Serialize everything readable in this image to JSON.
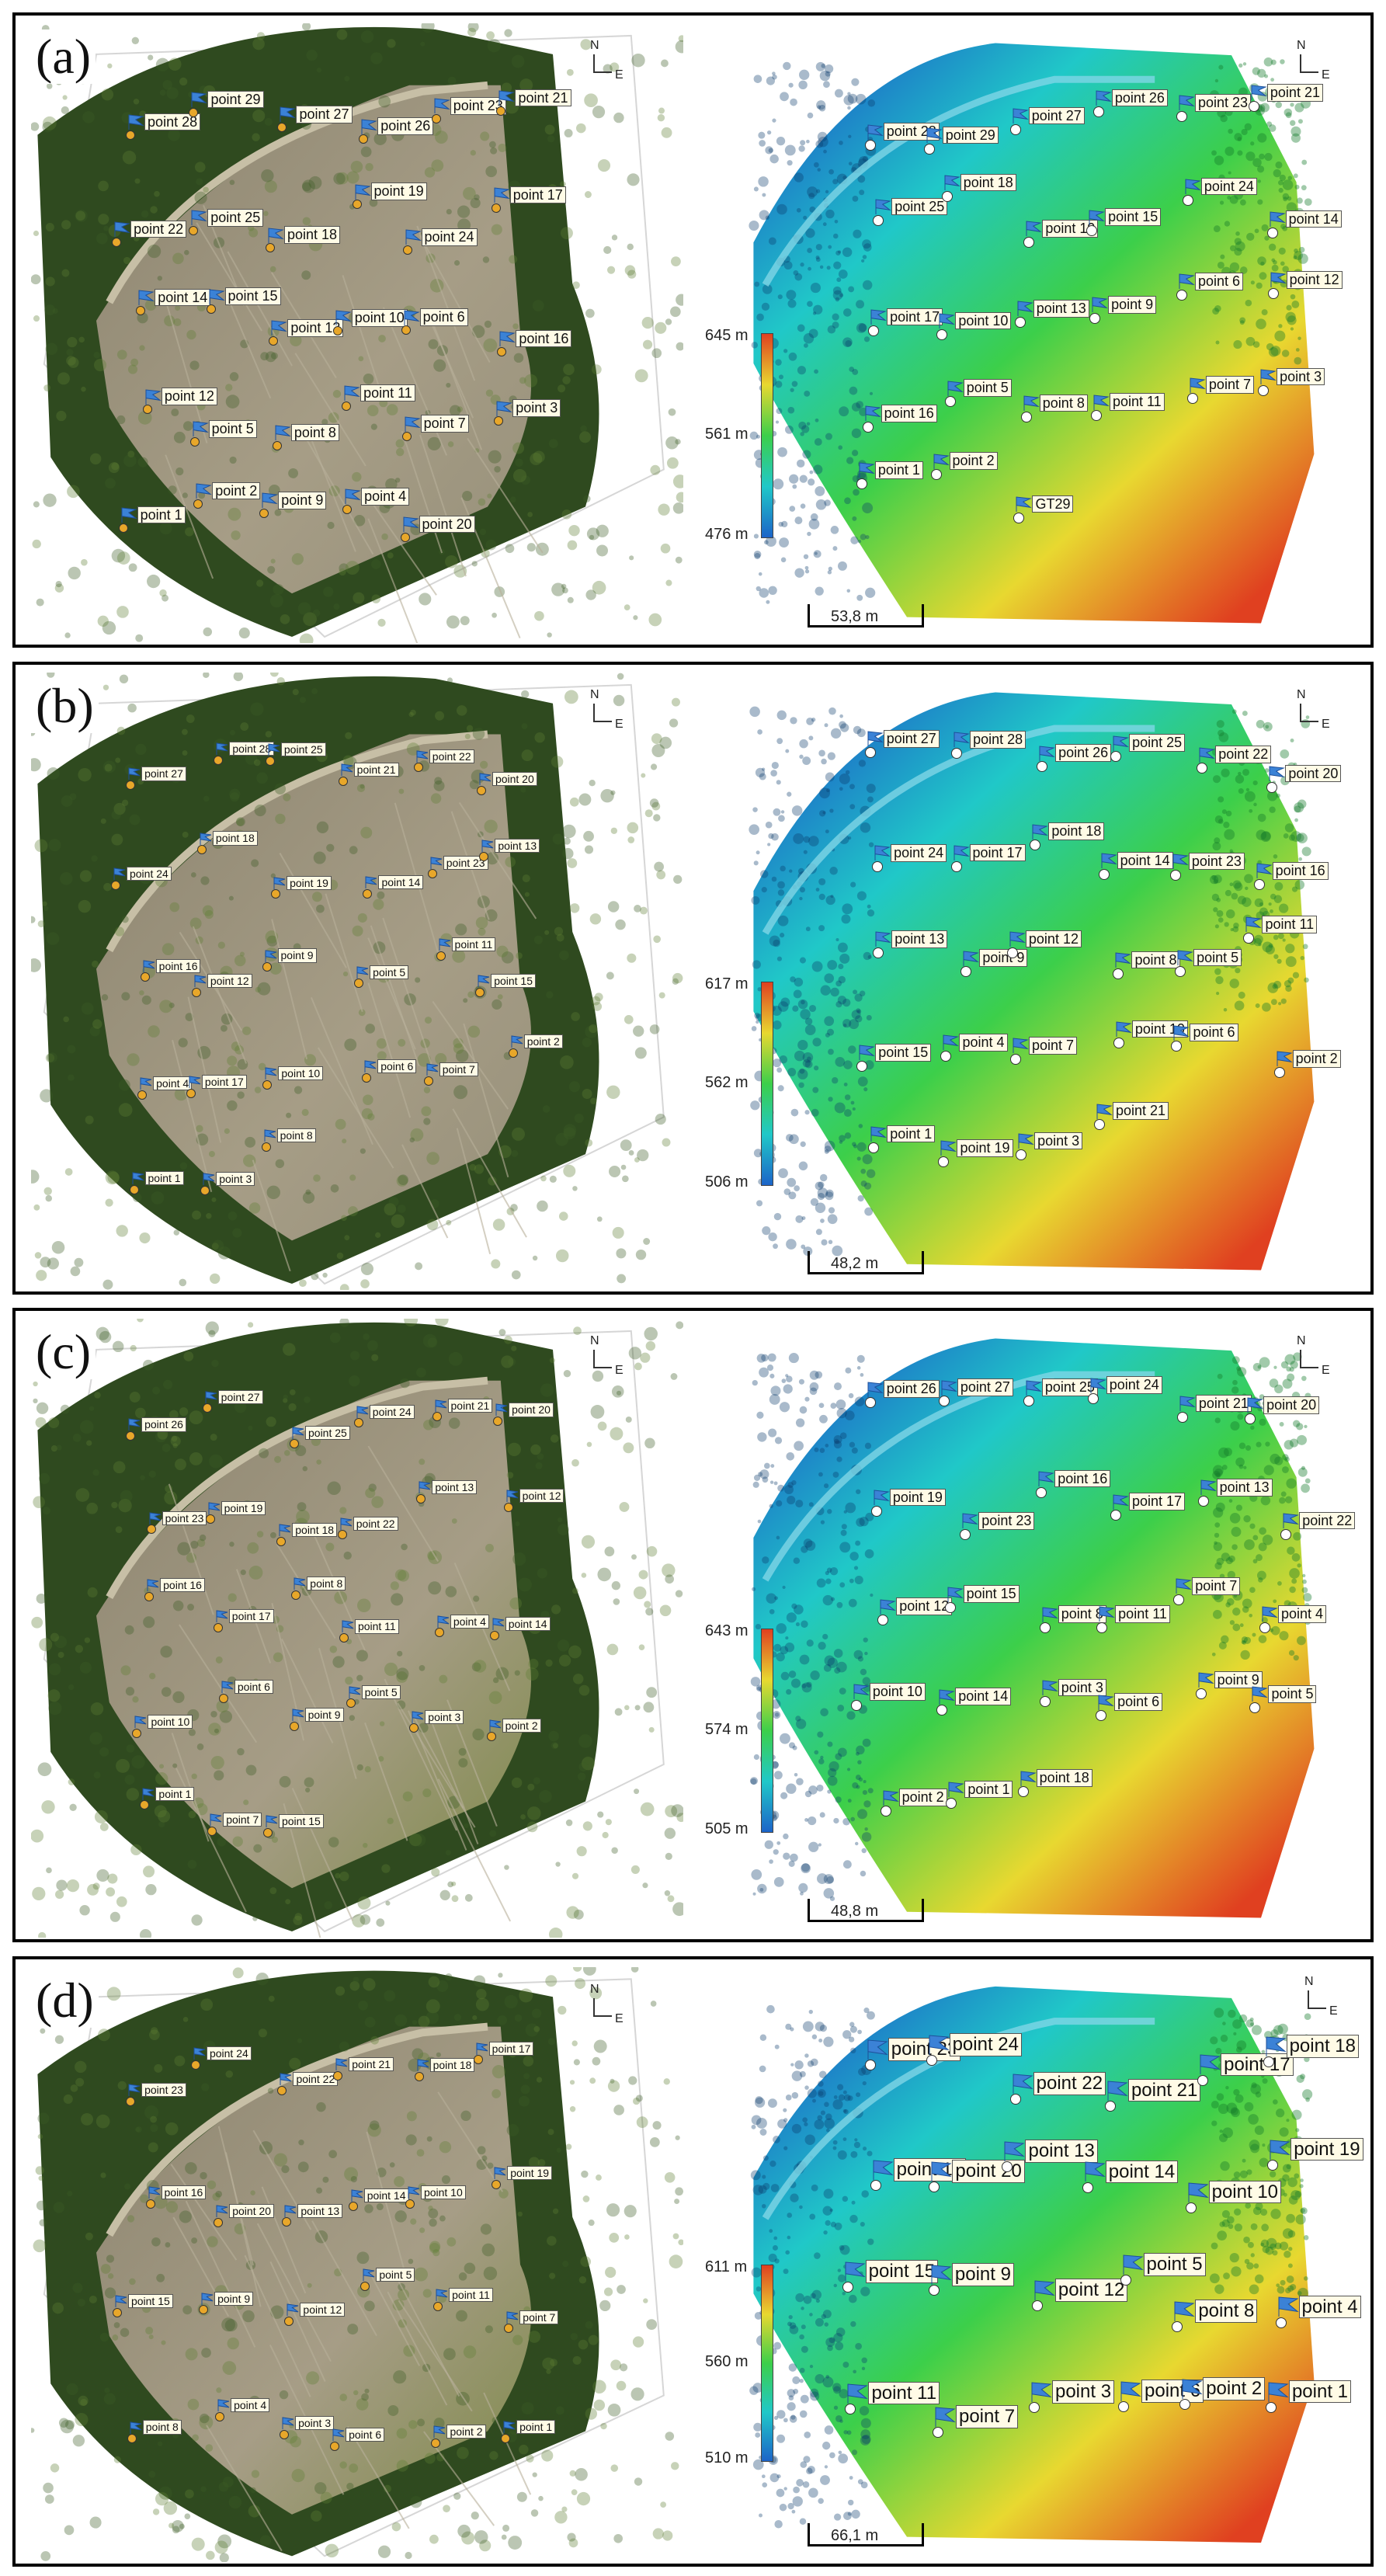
{
  "panels": [
    {
      "letter": "(a)",
      "colorbar": {
        "max": "645 m",
        "mid": "561 m",
        "min": "476 m"
      },
      "scale": "53,8 m",
      "ortho_points": [
        "point 28",
        "point 29",
        "point 27",
        "point 26",
        "point 23",
        "point 21",
        "point 22",
        "point 25",
        "point 18",
        "point 19",
        "point 24",
        "point 17",
        "point 14",
        "point 15",
        "point 13",
        "point 10",
        "point 6",
        "point 16",
        "point 12",
        "point 5",
        "point 8",
        "point 11",
        "point 7",
        "point 3",
        "point 1",
        "point 2",
        "point 9",
        "point 4",
        "point 20"
      ],
      "dem_points": [
        "point 28",
        "point 29",
        "point 27",
        "point 26",
        "point 23",
        "point 21",
        "point 25",
        "point 18",
        "point 19",
        "point 15",
        "point 24",
        "point 14",
        "point 17",
        "point 10",
        "point 13",
        "point 9",
        "point 6",
        "point 12",
        "point 16",
        "point 5",
        "point 8",
        "point 11",
        "point 7",
        "point 3",
        "point 1",
        "point 2",
        "GT29"
      ]
    },
    {
      "letter": "(b)",
      "colorbar": {
        "max": "617 m",
        "mid": "562 m",
        "min": "506 m"
      },
      "scale": "48,2 m",
      "ortho_points": [
        "point 27",
        "point 28",
        "point 25",
        "point 21",
        "point 22",
        "point 20",
        "point 24",
        "point 18",
        "point 19",
        "point 14",
        "point 23",
        "point 13",
        "point 16",
        "point 12",
        "point 9",
        "point 5",
        "point 11",
        "point 15",
        "point 4",
        "point 17",
        "point 10",
        "point 6",
        "point 7",
        "point 2",
        "point 1",
        "point 3",
        "point 8"
      ],
      "dem_points": [
        "point 27",
        "point 28",
        "point 26",
        "point 25",
        "point 22",
        "point 20",
        "point 24",
        "point 17",
        "point 18",
        "point 14",
        "point 23",
        "point 16",
        "point 13",
        "point 9",
        "point 12",
        "point 8",
        "point 5",
        "point 11",
        "point 15",
        "point 4",
        "point 7",
        "point 10",
        "point 6",
        "point 2",
        "point 1",
        "point 19",
        "point 3",
        "point 21"
      ]
    },
    {
      "letter": "(c)",
      "colorbar": {
        "max": "643 m",
        "mid": "574 m",
        "min": "505 m"
      },
      "scale": "48,8 m",
      "ortho_points": [
        "point 26",
        "point 27",
        "point 25",
        "point 24",
        "point 21",
        "point 20",
        "point 23",
        "point 19",
        "point 18",
        "point 22",
        "point 13",
        "point 12",
        "point 16",
        "point 17",
        "point 8",
        "point 11",
        "point 4",
        "point 14",
        "point 10",
        "point 6",
        "point 9",
        "point 5",
        "point 3",
        "point 2",
        "point 1",
        "point 7",
        "point 15"
      ],
      "dem_points": [
        "point 26",
        "point 27",
        "point 25",
        "point 24",
        "point 21",
        "point 20",
        "point 19",
        "point 23",
        "point 16",
        "point 17",
        "point 13",
        "point 22",
        "point 12",
        "point 15",
        "point 8",
        "point 11",
        "point 7",
        "point 4",
        "point 10",
        "point 14",
        "point 3",
        "point 6",
        "point 9",
        "point 5",
        "point 2",
        "point 1",
        "point 18"
      ]
    },
    {
      "letter": "(d)",
      "colorbar": {
        "max": "611 m",
        "mid": "560 m",
        "min": "510 m"
      },
      "scale": "66,1 m",
      "ortho_points": [
        "point 23",
        "point 24",
        "point 22",
        "point 21",
        "point 18",
        "point 17",
        "point 16",
        "point 20",
        "point 13",
        "point 14",
        "point 10",
        "point 19",
        "point 15",
        "point 9",
        "point 12",
        "point 5",
        "point 11",
        "point 7",
        "point 8",
        "point 4",
        "point 3",
        "point 6",
        "point 2",
        "point 1"
      ],
      "dem_points": [
        "point 23",
        "point 24",
        "point 22",
        "point 21",
        "point 17",
        "point 18",
        "point 16",
        "point 20",
        "point 13",
        "point 14",
        "point 10",
        "point 19",
        "point 15",
        "point 9",
        "point 12",
        "point 5",
        "point 8",
        "point 4",
        "point 11",
        "point 7",
        "point 3",
        "point 6",
        "point 2",
        "point 1"
      ]
    }
  ],
  "compass": {
    "n": "N",
    "e": "E"
  },
  "colors": {
    "forest_dark": "#2f4a1f",
    "forest_mid": "#5f7f34",
    "bare_ground": "#9a8f79",
    "dem_blue": "#1c64c8",
    "dem_cyan": "#20c8c8",
    "dem_green": "#3ccf4a",
    "dem_yellow": "#e8d830",
    "dem_red": "#e04020",
    "flag": "#3b82d6",
    "label_bg": "#fffbe6"
  }
}
